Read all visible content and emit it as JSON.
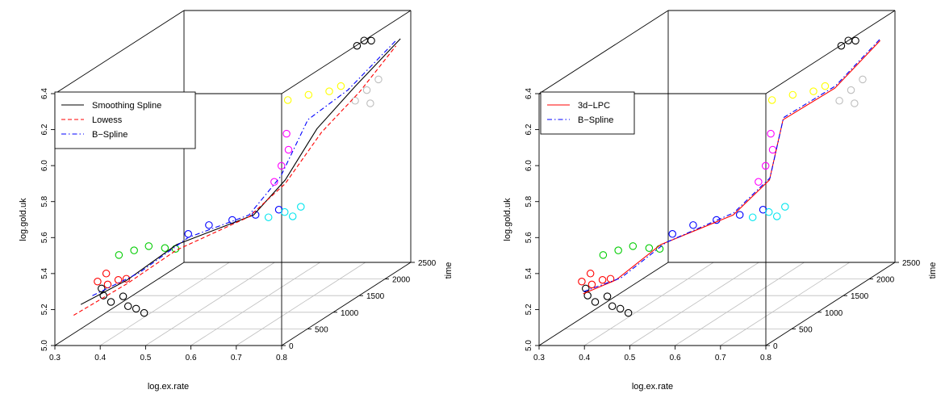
{
  "chart_data": [
    {
      "type": "scatter",
      "xlabel": "log.ex.rate",
      "ylabel": "log.gold.uk",
      "zlabel": "time",
      "x_ticks": [
        "0.3",
        "0.4",
        "0.5",
        "0.6",
        "0.7",
        "0.8"
      ],
      "y_ticks": [
        "5.0",
        "5.2",
        "5.4",
        "5.6",
        "5.8",
        "6.0",
        "6.2",
        "6.4"
      ],
      "z_ticks": [
        "0",
        "500",
        "1000",
        "1500",
        "2000",
        "2500"
      ],
      "legend": [
        {
          "label": "Smoothing Spline",
          "color": "#000000",
          "dash": "solid"
        },
        {
          "label": "Lowess",
          "color": "#ff0000",
          "dash": "dashed"
        },
        {
          "label": "B−Spline",
          "color": "#0000ff",
          "dash": "dotdash"
        }
      ],
      "series": [
        {
          "color": "#000000",
          "pts": [
            [
              0.39,
              5.25,
              150
            ],
            [
              0.41,
              5.22,
              120
            ],
            [
              0.43,
              5.24,
              180
            ],
            [
              0.45,
              5.2,
              100
            ],
            [
              0.47,
              5.19,
              80
            ],
            [
              0.49,
              5.17,
              60
            ],
            [
              0.38,
              5.28,
              200
            ]
          ]
        },
        {
          "color": "#ff0000",
          "pts": [
            [
              0.36,
              5.3,
              300
            ],
            [
              0.38,
              5.28,
              320
            ],
            [
              0.4,
              5.3,
              350
            ],
            [
              0.42,
              5.31,
              330
            ],
            [
              0.37,
              5.33,
              380
            ]
          ]
        },
        {
          "color": "#00cc00",
          "pts": [
            [
              0.39,
              5.42,
              450
            ],
            [
              0.42,
              5.44,
              480
            ],
            [
              0.45,
              5.46,
              500
            ],
            [
              0.48,
              5.44,
              550
            ],
            [
              0.5,
              5.43,
              580
            ]
          ]
        },
        {
          "color": "#0000ff",
          "pts": [
            [
              0.52,
              5.5,
              650
            ],
            [
              0.56,
              5.54,
              700
            ],
            [
              0.6,
              5.55,
              800
            ],
            [
              0.64,
              5.56,
              900
            ],
            [
              0.68,
              5.57,
              1000
            ]
          ]
        },
        {
          "color": "#00e5ee",
          "pts": [
            [
              0.64,
              5.5,
              1150
            ],
            [
              0.67,
              5.52,
              1200
            ],
            [
              0.7,
              5.54,
              1250
            ],
            [
              0.69,
              5.5,
              1180
            ]
          ]
        },
        {
          "color": "#ff00ff",
          "pts": [
            [
              0.63,
              5.66,
              1350
            ],
            [
              0.64,
              5.74,
              1400
            ],
            [
              0.65,
              5.82,
              1450
            ],
            [
              0.64,
              5.9,
              1500
            ]
          ]
        },
        {
          "color": "#ffff00",
          "pts": [
            [
              0.62,
              6.05,
              1700
            ],
            [
              0.66,
              6.07,
              1750
            ],
            [
              0.7,
              6.08,
              1800
            ],
            [
              0.72,
              6.1,
              1850
            ]
          ]
        },
        {
          "color": "#bebebe",
          "pts": [
            [
              0.74,
              6.0,
              1950
            ],
            [
              0.76,
              6.05,
              2000
            ],
            [
              0.78,
              6.1,
              2050
            ],
            [
              0.77,
              5.98,
              1980
            ]
          ]
        },
        {
          "color": "#000000",
          "pts": [
            [
              0.71,
              6.25,
              2250
            ],
            [
              0.72,
              6.27,
              2300
            ],
            [
              0.73,
              6.26,
              2350
            ]
          ]
        }
      ],
      "curves": [
        {
          "color": "#000000",
          "dash": "solid",
          "pts": [
            [
              0.34,
              5.2,
              150
            ],
            [
              0.42,
              5.3,
              350
            ],
            [
              0.5,
              5.45,
              600
            ],
            [
              0.63,
              5.55,
              950
            ],
            [
              0.66,
              5.68,
              1300
            ],
            [
              0.69,
              5.9,
              1650
            ],
            [
              0.74,
              6.08,
              1950
            ],
            [
              0.8,
              6.28,
              2300
            ]
          ]
        },
        {
          "color": "#ff0000",
          "dash": "dashed",
          "pts": [
            [
              0.33,
              5.15,
              100
            ],
            [
              0.42,
              5.28,
              350
            ],
            [
              0.5,
              5.42,
              600
            ],
            [
              0.62,
              5.54,
              950
            ],
            [
              0.66,
              5.66,
              1300
            ],
            [
              0.7,
              5.88,
              1650
            ],
            [
              0.75,
              6.05,
              1950
            ],
            [
              0.79,
              6.24,
              2300
            ]
          ]
        },
        {
          "color": "#0000ff",
          "dash": "dotdash",
          "pts": [
            [
              0.36,
              5.24,
              200
            ],
            [
              0.44,
              5.33,
              400
            ],
            [
              0.52,
              5.48,
              650
            ],
            [
              0.62,
              5.55,
              950
            ],
            [
              0.65,
              5.7,
              1300
            ],
            [
              0.67,
              5.95,
              1650
            ],
            [
              0.73,
              6.07,
              1900
            ],
            [
              0.79,
              6.27,
              2300
            ]
          ]
        }
      ]
    },
    {
      "type": "scatter",
      "xlabel": "log.ex.rate",
      "ylabel": "log.gold.uk",
      "zlabel": "time",
      "x_ticks": [
        "0.3",
        "0.4",
        "0.5",
        "0.6",
        "0.7",
        "0.8"
      ],
      "y_ticks": [
        "5.0",
        "5.2",
        "5.4",
        "5.6",
        "5.8",
        "6.0",
        "6.2",
        "6.4"
      ],
      "z_ticks": [
        "0",
        "500",
        "1000",
        "1500",
        "2000",
        "2500"
      ],
      "legend": [
        {
          "label": "3d−LPC",
          "color": "#ff0000",
          "dash": "solid"
        },
        {
          "label": "B−Spline",
          "color": "#0000ff",
          "dash": "dotdash"
        }
      ],
      "series": [
        {
          "color": "#000000",
          "pts": [
            [
              0.39,
              5.25,
              150
            ],
            [
              0.41,
              5.22,
              120
            ],
            [
              0.43,
              5.24,
              180
            ],
            [
              0.45,
              5.2,
              100
            ],
            [
              0.47,
              5.19,
              80
            ],
            [
              0.49,
              5.17,
              60
            ],
            [
              0.38,
              5.28,
              200
            ]
          ]
        },
        {
          "color": "#ff0000",
          "pts": [
            [
              0.36,
              5.3,
              300
            ],
            [
              0.38,
              5.28,
              320
            ],
            [
              0.4,
              5.3,
              350
            ],
            [
              0.42,
              5.31,
              330
            ],
            [
              0.37,
              5.33,
              380
            ]
          ]
        },
        {
          "color": "#00cc00",
          "pts": [
            [
              0.39,
              5.42,
              450
            ],
            [
              0.42,
              5.44,
              480
            ],
            [
              0.45,
              5.46,
              500
            ],
            [
              0.48,
              5.44,
              550
            ],
            [
              0.5,
              5.43,
              580
            ]
          ]
        },
        {
          "color": "#0000ff",
          "pts": [
            [
              0.52,
              5.5,
              650
            ],
            [
              0.56,
              5.54,
              700
            ],
            [
              0.6,
              5.55,
              800
            ],
            [
              0.64,
              5.56,
              900
            ],
            [
              0.68,
              5.57,
              1000
            ]
          ]
        },
        {
          "color": "#00e5ee",
          "pts": [
            [
              0.64,
              5.5,
              1150
            ],
            [
              0.67,
              5.52,
              1200
            ],
            [
              0.7,
              5.54,
              1250
            ],
            [
              0.69,
              5.5,
              1180
            ]
          ]
        },
        {
          "color": "#ff00ff",
          "pts": [
            [
              0.63,
              5.66,
              1350
            ],
            [
              0.64,
              5.74,
              1400
            ],
            [
              0.65,
              5.82,
              1450
            ],
            [
              0.64,
              5.9,
              1500
            ]
          ]
        },
        {
          "color": "#ffff00",
          "pts": [
            [
              0.62,
              6.05,
              1700
            ],
            [
              0.66,
              6.07,
              1750
            ],
            [
              0.7,
              6.08,
              1800
            ],
            [
              0.72,
              6.1,
              1850
            ]
          ]
        },
        {
          "color": "#bebebe",
          "pts": [
            [
              0.74,
              6.0,
              1950
            ],
            [
              0.76,
              6.05,
              2000
            ],
            [
              0.78,
              6.1,
              2050
            ],
            [
              0.77,
              5.98,
              1980
            ]
          ]
        },
        {
          "color": "#000000",
          "pts": [
            [
              0.71,
              6.25,
              2250
            ],
            [
              0.72,
              6.27,
              2300
            ],
            [
              0.73,
              6.26,
              2350
            ]
          ]
        }
      ],
      "curves": [
        {
          "color": "#ff0000",
          "dash": "solid",
          "pts": [
            [
              0.38,
              5.26,
              150
            ],
            [
              0.43,
              5.3,
              350
            ],
            [
              0.5,
              5.45,
              600
            ],
            [
              0.62,
              5.55,
              950
            ],
            [
              0.66,
              5.68,
              1300
            ],
            [
              0.65,
              5.95,
              1650
            ],
            [
              0.73,
              6.07,
              1950
            ],
            [
              0.79,
              6.27,
              2300
            ]
          ]
        },
        {
          "color": "#0000ff",
          "dash": "dotdash",
          "pts": [
            [
              0.38,
              5.27,
              160
            ],
            [
              0.44,
              5.31,
              360
            ],
            [
              0.51,
              5.46,
              610
            ],
            [
              0.62,
              5.56,
              960
            ],
            [
              0.66,
              5.69,
              1310
            ],
            [
              0.65,
              5.96,
              1660
            ],
            [
              0.73,
              6.08,
              1960
            ],
            [
              0.79,
              6.28,
              2310
            ]
          ]
        }
      ]
    }
  ]
}
